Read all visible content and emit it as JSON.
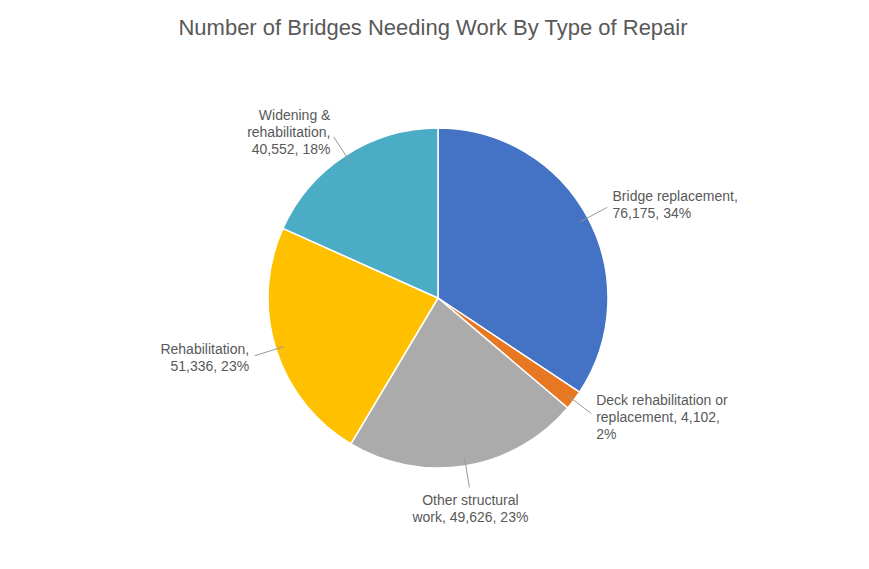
{
  "chart_data": {
    "type": "pie",
    "title": "Number of Bridges Needing Work By Type of Repair",
    "categories": [
      "Bridge replacement,\n76,175, 34%",
      "Deck rehabilitation or\nreplacement, 4,102,\n2%",
      "Other structural\nwork, 49,626, 23%",
      "Rehabilitation,\n51,336, 23%",
      "Widening &\nrehabilitation,\n40,552, 18%"
    ],
    "values": [
      76175,
      4102,
      49626,
      51336,
      40552
    ],
    "colors": [
      "#4472C4",
      "#E87722",
      "#ABABAB",
      "#FFC000",
      "#4BACC6"
    ]
  }
}
